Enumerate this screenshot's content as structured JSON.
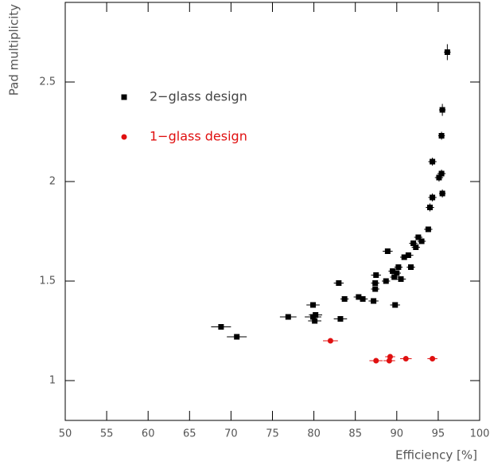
{
  "chart_data": {
    "type": "scatter",
    "x_label": "Efficiency [%]",
    "y_label": "Pad multiplicity",
    "xlim": [
      50,
      100
    ],
    "xticks": [
      50,
      55,
      60,
      65,
      70,
      75,
      80,
      85,
      90,
      95,
      100
    ],
    "ylim": [
      0.8,
      2.9
    ],
    "yticks": [
      1,
      1.5,
      2,
      2.5
    ],
    "legend": "upper left",
    "series": [
      {
        "name": "2−glass design",
        "color": "#000000",
        "marker": "square",
        "x": [
          68.8,
          70.7,
          76.9,
          79.9,
          79.9,
          80.1,
          80.2,
          83.0,
          83.2,
          83.7,
          85.4,
          85.9,
          87.2,
          87.4,
          87.5,
          87.4,
          88.7,
          88.9,
          89.5,
          89.7,
          89.8,
          90.0,
          90.2,
          90.5,
          90.9,
          91.4,
          91.7,
          92.0,
          92.3,
          92.6,
          93.0,
          93.8,
          94.0,
          94.3,
          94.3,
          95.1,
          95.4,
          95.5,
          95.4,
          95.5,
          96.1
        ],
        "y": [
          1.27,
          1.22,
          1.32,
          1.38,
          1.32,
          1.3,
          1.33,
          1.49,
          1.31,
          1.41,
          1.42,
          1.41,
          1.4,
          1.46,
          1.53,
          1.49,
          1.5,
          1.65,
          1.55,
          1.52,
          1.38,
          1.54,
          1.57,
          1.51,
          1.62,
          1.63,
          1.57,
          1.69,
          1.67,
          1.72,
          1.7,
          1.76,
          1.87,
          1.92,
          2.1,
          2.02,
          2.04,
          1.94,
          2.23,
          2.36,
          2.65
        ],
        "xerr": [
          1.2,
          1.2,
          1.0,
          0.8,
          1.0,
          0.8,
          0.8,
          0.6,
          0.8,
          0.5,
          0.6,
          0.6,
          0.6,
          0.5,
          0.6,
          0.5,
          0.5,
          0.6,
          0.5,
          0.5,
          0.6,
          0.5,
          0.5,
          0.6,
          0.5,
          0.6,
          0.5,
          0.5,
          0.5,
          0.5,
          0.5,
          0.5,
          0.5,
          0.5,
          0.5,
          0.5,
          0.5,
          0.4,
          0.4,
          0.4,
          0.4
        ],
        "yerr": [
          0.01,
          0.01,
          0.01,
          0.01,
          0.01,
          0.01,
          0.01,
          0.01,
          0.01,
          0.01,
          0.01,
          0.01,
          0.01,
          0.01,
          0.01,
          0.01,
          0.01,
          0.01,
          0.01,
          0.01,
          0.01,
          0.01,
          0.01,
          0.01,
          0.01,
          0.01,
          0.01,
          0.01,
          0.01,
          0.01,
          0.01,
          0.01,
          0.02,
          0.02,
          0.02,
          0.02,
          0.02,
          0.02,
          0.02,
          0.03,
          0.04
        ]
      },
      {
        "name": "1−glass design",
        "color": "#e01010",
        "marker": "circle",
        "x": [
          82.0,
          87.5,
          89.1,
          89.2,
          91.1,
          94.3
        ],
        "y": [
          1.2,
          1.1,
          1.1,
          1.12,
          1.11,
          1.11
        ],
        "xerr": [
          0.9,
          0.8,
          0.7,
          0.6,
          0.7,
          0.6
        ],
        "yerr": [
          0.01,
          0.01,
          0.01,
          0.01,
          0.01,
          0.01
        ]
      }
    ]
  }
}
